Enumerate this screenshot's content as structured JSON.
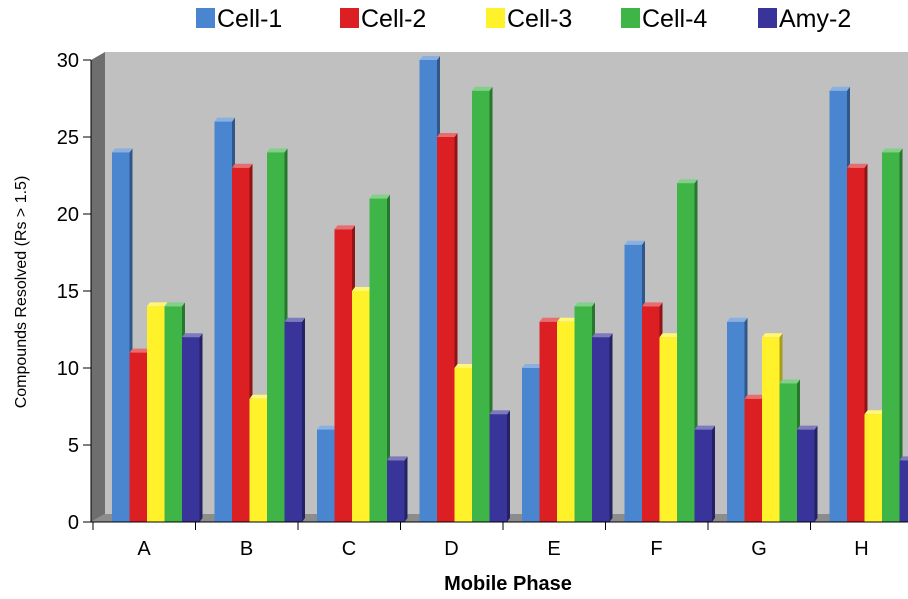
{
  "chart_data": {
    "type": "bar",
    "title": "",
    "xlabel": "Mobile Phase",
    "ylabel": "Compounds Resolved (Rs > 1.5)",
    "ylim": [
      0,
      30
    ],
    "yticks": [
      "0",
      "5",
      "10",
      "15",
      "20",
      "25",
      "30"
    ],
    "categories": [
      "A",
      "B",
      "C",
      "D",
      "E",
      "F",
      "G",
      "H"
    ],
    "legend_position": "top",
    "grid": false,
    "background_color": "#c0c0c0",
    "series": [
      {
        "name": "Cell-1",
        "color": "#4a86d0",
        "values": [
          24,
          26,
          6,
          30,
          10,
          18,
          13,
          28
        ]
      },
      {
        "name": "Cell-2",
        "color": "#dc1f22",
        "values": [
          11,
          23,
          19,
          25,
          13,
          14,
          8,
          23
        ]
      },
      {
        "name": "Cell-3",
        "color": "#fff22a",
        "values": [
          14,
          8,
          15,
          10,
          13,
          12,
          12,
          7
        ]
      },
      {
        "name": "Cell-4",
        "color": "#3fb548",
        "values": [
          14,
          24,
          21,
          28,
          14,
          22,
          9,
          24
        ]
      },
      {
        "name": "Amy-2",
        "color": "#38349a",
        "values": [
          12,
          13,
          4,
          7,
          12,
          6,
          6,
          4
        ]
      }
    ]
  }
}
